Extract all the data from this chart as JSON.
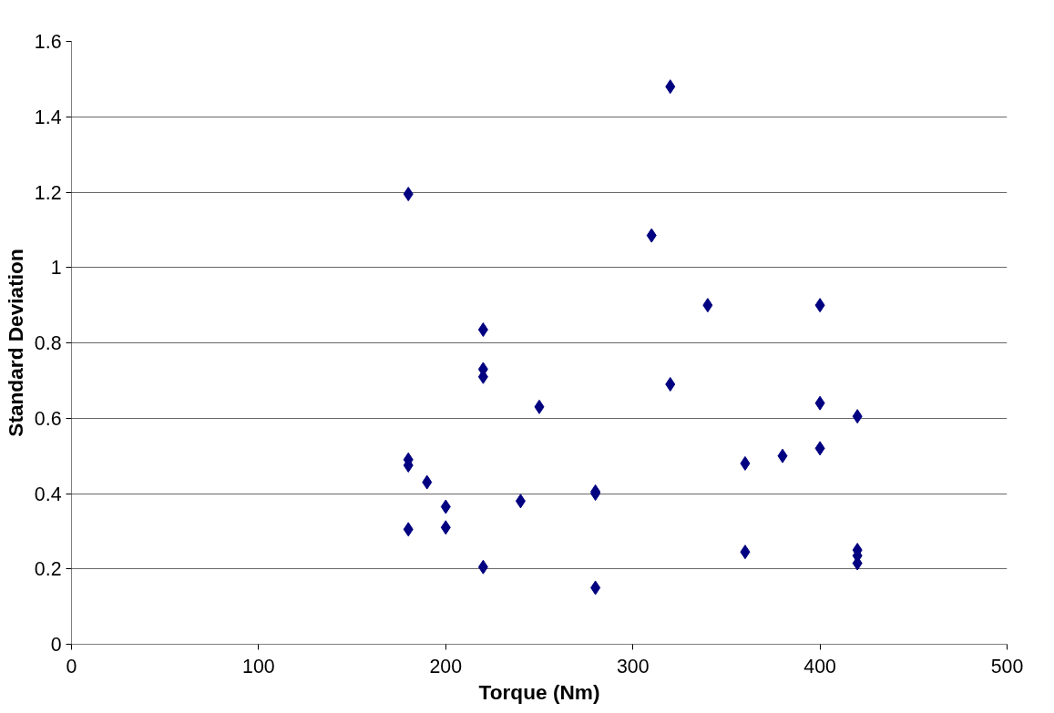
{
  "chart_data": {
    "type": "scatter",
    "xlabel": "Torque (Nm)",
    "ylabel": "Standard Deviation",
    "xlim": [
      0,
      500
    ],
    "xticks": [
      0,
      100,
      200,
      300,
      400,
      500
    ],
    "ylim": [
      0,
      1.6
    ],
    "yticks": [
      0,
      {
        "value": 0.2,
        "label": "0.2"
      },
      {
        "value": 0.4,
        "label": "0.4"
      },
      {
        "value": 0.6,
        "label": "0.6"
      },
      {
        "value": 0.8,
        "label": "0.8"
      },
      1,
      {
        "value": 1.2,
        "label": "1.2"
      },
      {
        "value": 1.4,
        "label": "1.4"
      },
      {
        "value": 1.6,
        "label": "1.6"
      }
    ],
    "grid": "y",
    "marker": "diamond",
    "series": [
      {
        "color": "#000080",
        "x": [
          180,
          180,
          180,
          180,
          190,
          200,
          200,
          220,
          220,
          220,
          220,
          240,
          250,
          280,
          280,
          280,
          310,
          320,
          320,
          340,
          360,
          360,
          380,
          400,
          400,
          400,
          420,
          420,
          420,
          420
        ],
        "values": [
          1.195,
          0.49,
          0.475,
          0.305,
          0.43,
          0.365,
          0.31,
          0.835,
          0.73,
          0.71,
          0.205,
          0.38,
          0.63,
          0.405,
          0.4,
          0.15,
          1.085,
          1.48,
          0.69,
          0.9,
          0.48,
          0.245,
          0.5,
          0.9,
          0.64,
          0.52,
          0.605,
          0.25,
          0.235,
          0.215
        ]
      }
    ]
  }
}
